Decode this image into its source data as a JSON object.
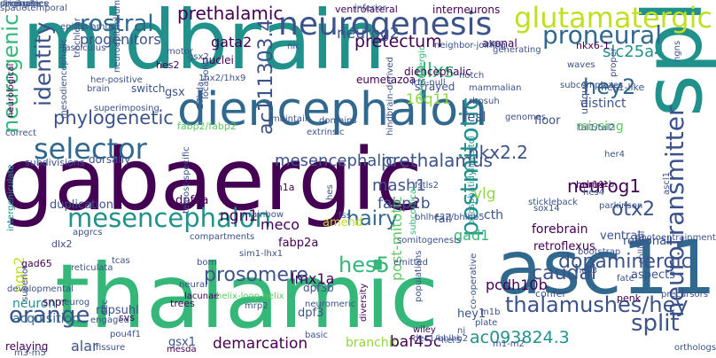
{
  "palette": {
    "background": "#ffffff",
    "dark_purple": "#440154",
    "indigo": "#3b528b",
    "blue": "#31688e",
    "teal": "#21918c",
    "green": "#35b779",
    "light_green": "#5ec962",
    "lime": "#90d743",
    "yellow": "#c2df23"
  },
  "words": [
    {
      "text": "gabaergic",
      "color": "#440154"
    },
    {
      "text": "midbrain",
      "color": "#21918c"
    },
    {
      "text": "thalamic",
      "color": "#35b779"
    },
    {
      "text": "asc11",
      "color": "#31688e"
    },
    {
      "text": "spl",
      "color": "#21918c"
    },
    {
      "text": "diencephalon",
      "color": "#31688e"
    },
    {
      "text": "neurogenesis",
      "color": "#3b528b"
    },
    {
      "text": "selector",
      "color": "#31688e"
    },
    {
      "text": "neurotransmitter",
      "color": "#3b528b"
    },
    {
      "text": "glutamatergic",
      "color": "#c2df23"
    },
    {
      "text": "prethalamic",
      "color": "#440154"
    },
    {
      "text": "rostral",
      "color": "#31688e"
    },
    {
      "text": "neurogenic",
      "color": "#35b779"
    },
    {
      "text": "identity",
      "color": "#3b528b"
    },
    {
      "text": "proneural",
      "color": "#31688e"
    },
    {
      "text": "ac111303.4",
      "color": "#3b528b"
    },
    {
      "text": "mesencephalon",
      "color": "#21918c"
    },
    {
      "text": "postmitotic",
      "color": "#21918c"
    },
    {
      "text": "hairy",
      "color": "#31688e"
    },
    {
      "text": "thalamushes/hey",
      "color": "#3b528b"
    },
    {
      "text": "caudal",
      "color": "#3b528b"
    },
    {
      "text": "split",
      "color": "#3b528b"
    },
    {
      "text": "hes5",
      "color": "#35b779"
    },
    {
      "text": "orange",
      "color": "#3b528b"
    },
    {
      "text": "prosomere",
      "color": "#3b528b"
    },
    {
      "text": "dopaminergic",
      "color": "#3b528b"
    },
    {
      "text": "phylogenetic",
      "color": "#3b528b"
    },
    {
      "text": "mesencephalic",
      "color": "#3b528b"
    },
    {
      "text": "prethalamus",
      "color": "#3b528b"
    },
    {
      "text": "nkx2.2",
      "color": "#3b528b"
    },
    {
      "text": "neurog1",
      "color": "#440154"
    },
    {
      "text": "otx2",
      "color": "#3b528b"
    },
    {
      "text": "pretectum",
      "color": "#440154"
    },
    {
      "text": "neurog2",
      "color": "#3b528b"
    },
    {
      "text": "progenitors",
      "color": "#3b528b"
    },
    {
      "text": "gata2",
      "color": "#440154"
    },
    {
      "text": "hey2",
      "color": "#31688e"
    },
    {
      "text": "slc25a4",
      "color": "#21918c"
    },
    {
      "text": "dlxs",
      "color": "#35b779"
    },
    {
      "text": "16q11",
      "color": "#90d743"
    },
    {
      "text": "fesl",
      "color": "#3b528b"
    },
    {
      "text": "mash1",
      "color": "#3b528b"
    },
    {
      "text": "fabp2b",
      "color": "#3b528b"
    },
    {
      "text": "vlg",
      "color": "#90d743"
    },
    {
      "text": "gad1",
      "color": "#35b779"
    },
    {
      "text": "pcdh10b",
      "color": "#440154"
    },
    {
      "text": "ngn1",
      "color": "#440154"
    },
    {
      "text": "meco",
      "color": "#440154"
    },
    {
      "text": "post-mitotic",
      "color": "#5ec962"
    },
    {
      "text": "lmx1a",
      "color": "#440154"
    },
    {
      "text": "ngn2",
      "color": "#c2df23"
    },
    {
      "text": "neuron",
      "color": "#21918c"
    },
    {
      "text": "demarcation",
      "color": "#440154"
    },
    {
      "text": "branchio",
      "color": "#90d743"
    },
    {
      "text": "baf45c",
      "color": "#440154"
    },
    {
      "text": "ac093824.3",
      "color": "#21918c"
    },
    {
      "text": "alar",
      "color": "#3b528b"
    },
    {
      "text": "acquisition",
      "color": "#31688e"
    },
    {
      "text": "rbpsuhl",
      "color": "#3b528b"
    },
    {
      "text": "dpf3a",
      "color": "#440154"
    },
    {
      "text": "dpf3b",
      "color": "#3b528b"
    },
    {
      "text": "fabp2a",
      "color": "#440154"
    },
    {
      "text": "dpf3",
      "color": "#3b528b"
    },
    {
      "text": "gsx1",
      "color": "#3b528b"
    },
    {
      "text": "hey1",
      "color": "#3b528b"
    },
    {
      "text": "regional",
      "color": "#3b528b"
    },
    {
      "text": "aspects",
      "color": "#3b528b"
    },
    {
      "text": "retroflexus",
      "color": "#440154"
    },
    {
      "text": "forebrain",
      "color": "#440154"
    },
    {
      "text": "cth",
      "color": "#3b528b"
    },
    {
      "text": "fail",
      "color": "#3b528b"
    },
    {
      "text": "amend",
      "color": "#c2df23"
    },
    {
      "text": "ventral",
      "color": "#3b528b"
    },
    {
      "text": "missing",
      "color": "#5ec962"
    },
    {
      "text": "floor",
      "color": "#3b528b"
    },
    {
      "text": "unique",
      "color": "#3b528b"
    },
    {
      "text": "distinct",
      "color": "#3b528b"
    },
    {
      "text": "hes1-like",
      "color": "#3b528b"
    },
    {
      "text": "nkx6-1",
      "color": "#440154"
    },
    {
      "text": "waves",
      "color": "#3b528b"
    },
    {
      "text": "axonal",
      "color": "#440154"
    },
    {
      "text": "strayed",
      "color": "#3b528b"
    },
    {
      "text": "eumetazoa",
      "color": "#440154"
    },
    {
      "text": "diencephalic",
      "color": "#440154"
    },
    {
      "text": "gsx",
      "color": "#3b528b"
    },
    {
      "text": "switch",
      "color": "#3b528b"
    },
    {
      "text": "hes2",
      "color": "#440154"
    },
    {
      "text": "nuclei",
      "color": "#440154"
    },
    {
      "text": "fabp2/fabp2",
      "color": "#5ec962"
    },
    {
      "text": "subdivisions",
      "color": "#3b528b"
    },
    {
      "text": "dorsally",
      "color": "#3b528b"
    },
    {
      "text": "duplication",
      "color": "#3b528b"
    },
    {
      "text": "dlx2",
      "color": "#3b528b"
    },
    {
      "text": "gad65",
      "color": "#440154"
    },
    {
      "text": "developmental",
      "color": "#3b528b"
    },
    {
      "text": "relaying",
      "color": "#440154"
    },
    {
      "text": "interneurons",
      "color": "#440154"
    },
    {
      "text": "ventrolateral",
      "color": "#440154"
    },
    {
      "text": "her11",
      "color": "#440154"
    },
    {
      "text": "m1a",
      "color": "#440154"
    },
    {
      "text": "lmx1b",
      "color": "#440154"
    },
    {
      "text": "snpr",
      "color": "#440154"
    },
    {
      "text": "trees",
      "color": "#440154"
    },
    {
      "text": "svs",
      "color": "#440154"
    },
    {
      "text": "penk",
      "color": "#440154"
    },
    {
      "text": "lacunae",
      "color": "#440154"
    },
    {
      "text": "plate",
      "color": "#3b528b"
    },
    {
      "text": "confer",
      "color": "#3b528b"
    },
    {
      "text": "wiley",
      "color": "#440154"
    },
    {
      "text": "mesda",
      "color": "#440154"
    },
    {
      "text": "diversity",
      "color": "#440154"
    },
    {
      "text": "populations",
      "color": "#3b528b"
    },
    {
      "text": "co-operative",
      "color": "#3b528b"
    },
    {
      "text": "basic",
      "color": "#3b528b"
    },
    {
      "text": "neural",
      "color": "#3b528b"
    },
    {
      "text": "teleost-specific",
      "color": "#3b528b"
    },
    {
      "text": "compartments",
      "color": "#3b528b"
    },
    {
      "text": "helix-loop-helix",
      "color": "#5ec962"
    },
    {
      "text": "subcortical",
      "color": "#35b779"
    },
    {
      "text": "serotonergic",
      "color": "#35b779"
    },
    {
      "text": "phosphatidylinositol",
      "color": "#21918c"
    },
    {
      "text": "her4",
      "color": "#3b528b"
    },
    {
      "text": "hes4",
      "color": "#3b528b"
    },
    {
      "text": "sox14",
      "color": "#3b528b"
    },
    {
      "text": "stickleback",
      "color": "#3b528b"
    },
    {
      "text": "hindbrain-derived",
      "color": "#3b528b"
    },
    {
      "text": "rainbow",
      "color": "#3b528b"
    },
    {
      "text": "fss",
      "color": "#3b528b"
    },
    {
      "text": "intergeniculate",
      "color": "#21918c"
    },
    {
      "text": "neurological",
      "color": "#440154"
    },
    {
      "text": "spatiotemporal",
      "color": "#3b528b"
    },
    {
      "text": "fasciculus",
      "color": "#3b528b"
    },
    {
      "text": "inferior",
      "color": "#3b528b"
    },
    {
      "text": "neuroepithelium",
      "color": "#3b528b"
    },
    {
      "text": "m1b",
      "color": "#3b528b"
    },
    {
      "text": "her5",
      "color": "#3b528b"
    },
    {
      "text": "nj",
      "color": "#3b528b"
    },
    {
      "text": "orthologs",
      "color": "#3b528b"
    },
    {
      "text": "precursors",
      "color": "#3b528b"
    },
    {
      "text": "m1-m2",
      "color": "#3b528b"
    },
    {
      "text": "fate",
      "color": "#3b528b"
    },
    {
      "text": "parkinson",
      "color": "#3b528b"
    },
    {
      "text": "bootstrap",
      "color": "#3b528b"
    },
    {
      "text": "hes3",
      "color": "#3b528b"
    },
    {
      "text": "colliculi",
      "color": "#3b528b"
    },
    {
      "text": "photoentrainment",
      "color": "#3b528b"
    },
    {
      "text": "ascl1",
      "color": "#3b528b"
    },
    {
      "text": "tal1/tal2",
      "color": "#3b528b"
    },
    {
      "text": "ngns",
      "color": "#3b528b"
    },
    {
      "text": "subcomplexes",
      "color": "#3b528b"
    },
    {
      "text": "proper",
      "color": "#3b528b"
    },
    {
      "text": "genomes",
      "color": "#3b528b"
    },
    {
      "text": "maintain",
      "color": "#3b528b"
    },
    {
      "text": "domains",
      "color": "#3b528b"
    },
    {
      "text": "extrinsic",
      "color": "#3b528b"
    },
    {
      "text": "nic",
      "color": "#3b528b"
    },
    {
      "text": "neighbor-joining",
      "color": "#3b528b"
    },
    {
      "text": "atac",
      "color": "#3b528b"
    },
    {
      "text": "generating",
      "color": "#3b528b"
    },
    {
      "text": "notch",
      "color": "#3b528b"
    },
    {
      "text": "mammalian",
      "color": "#3b528b"
    },
    {
      "text": "rbpsuh",
      "color": "#3b528b"
    },
    {
      "text": "irf6-null",
      "color": "#3b528b"
    },
    {
      "text": "1hx2/1hx9",
      "color": "#3b528b"
    },
    {
      "text": "gsx2",
      "color": "#3b528b"
    },
    {
      "text": "motor",
      "color": "#3b528b"
    },
    {
      "text": "locations",
      "color": "#3b528b"
    },
    {
      "text": "27kda",
      "color": "#3b528b"
    },
    {
      "text": "mesodiencephalic",
      "color": "#3b528b"
    },
    {
      "text": "her-positive",
      "color": "#3b528b"
    },
    {
      "text": "brain",
      "color": "#3b528b"
    },
    {
      "text": "trochlear",
      "color": "#3b528b"
    },
    {
      "text": "superimposing",
      "color": "#3b528b"
    },
    {
      "text": "correct",
      "color": "#3b528b"
    },
    {
      "text": "epithalamus",
      "color": "#3b528b"
    },
    {
      "text": "apgrcs",
      "color": "#3b528b"
    },
    {
      "text": "born",
      "color": "#3b528b"
    },
    {
      "text": "sim1-lhx1",
      "color": "#3b528b"
    },
    {
      "text": "reticulata",
      "color": "#3b528b"
    },
    {
      "text": "tcas",
      "color": "#3b528b"
    },
    {
      "text": "neurog",
      "color": "#3b528b"
    },
    {
      "text": "engaged",
      "color": "#3b528b"
    },
    {
      "text": "dec",
      "color": "#3b528b"
    },
    {
      "text": "pou4f1",
      "color": "#3b528b"
    },
    {
      "text": "fissure",
      "color": "#3b528b"
    },
    {
      "text": "m3-m5",
      "color": "#3b528b"
    },
    {
      "text": "mrp2",
      "color": "#3b528b"
    },
    {
      "text": "neuromeric",
      "color": "#3b528b"
    },
    {
      "text": "emitted",
      "color": "#3b528b"
    },
    {
      "text": "dec1/bhlhb2",
      "color": "#3b528b"
    },
    {
      "text": "superior",
      "color": "#3b528b"
    },
    {
      "text": "hes",
      "color": "#3b528b"
    },
    {
      "text": "fstls2",
      "color": "#3b528b"
    },
    {
      "text": "bhlhe22/bhlhb5",
      "color": "#3b528b"
    },
    {
      "text": "somitogenesis",
      "color": "#3b528b"
    },
    {
      "text": "originate",
      "color": "#3b528b"
    },
    {
      "text": "divergence",
      "color": "#3b528b"
    },
    {
      "text": "similarities",
      "color": "#3b528b"
    }
  ]
}
